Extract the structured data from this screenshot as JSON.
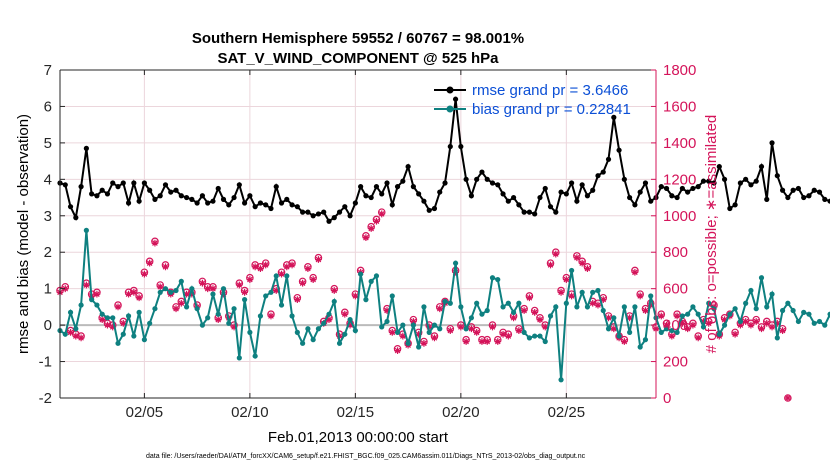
{
  "chart_data": {
    "type": "line",
    "title": "Southern Hemisphere 59552 / 60767 = 98.001%",
    "subtitle": "SAT_V_WIND_COMPONENT @ 525 hPa",
    "xlabel": "Feb.01,2013 00:00:00 start",
    "ylabel_left": "rmse and bias (model - observation)",
    "ylabel_right": "# of obs: o=possible; ∗=assimilated",
    "footer": "data file: /Users/raeder/DAI/ATM_forcXX/CAM6_setup/f.e21.FHIST_BGC.f09_025.CAM6assim.011/Diags_NTrS_2013-02/obs_diag_output.nc",
    "xlim": [
      1,
      29.25
    ],
    "ylim_left": [
      -2,
      7
    ],
    "ylim_right": [
      0,
      1800
    ],
    "xticks": [
      5,
      10,
      15,
      20,
      25
    ],
    "xtick_labels": [
      "02/05",
      "02/10",
      "02/15",
      "02/20",
      "02/25"
    ],
    "yticks_left": [
      -2,
      -1,
      0,
      1,
      2,
      3,
      4,
      5,
      6,
      7
    ],
    "yticks_right": [
      0,
      200,
      400,
      600,
      800,
      1000,
      1200,
      1400,
      1600,
      1800
    ],
    "grid": true,
    "legend_position": "top-right",
    "colors": {
      "rmse": "#000000",
      "bias": "#0e8080",
      "obs": "#d4145a",
      "legend_text": "#0b4fd6",
      "zero_line": "#bbbbbb",
      "grid": "#ecd6dc"
    },
    "x_start": 1.0,
    "x_step": 0.25,
    "series": [
      {
        "name": "rmse grand pr = 3.6466",
        "axis": "left",
        "values": [
          3.9,
          3.85,
          3.25,
          2.95,
          3.8,
          4.85,
          3.6,
          3.55,
          3.7,
          3.6,
          3.9,
          3.8,
          3.9,
          3.35,
          3.9,
          3.4,
          3.9,
          3.7,
          3.45,
          3.55,
          3.85,
          3.65,
          3.7,
          3.55,
          3.5,
          3.45,
          3.35,
          3.55,
          3.35,
          3.4,
          3.75,
          3.45,
          3.3,
          3.5,
          3.85,
          3.35,
          3.55,
          3.25,
          3.35,
          3.3,
          3.2,
          3.8,
          3.35,
          3.45,
          3.3,
          3.25,
          3.1,
          3.1,
          3.0,
          3.05,
          3.1,
          2.85,
          2.95,
          3.1,
          3.25,
          3.0,
          3.35,
          3.8,
          3.55,
          3.5,
          3.8,
          3.6,
          3.9,
          3.3,
          3.8,
          3.95,
          4.35,
          3.8,
          3.6,
          3.4,
          3.15,
          3.2,
          3.65,
          3.9,
          4.9,
          6.2,
          4.9,
          4.0,
          3.55,
          4.0,
          4.2,
          4.0,
          3.9,
          3.85,
          3.6,
          3.4,
          3.5,
          3.3,
          3.1,
          3.1,
          3.05,
          3.5,
          3.75,
          3.25,
          3.1,
          3.65,
          3.6,
          3.9,
          3.4,
          3.85,
          3.55,
          3.7,
          4.1,
          4.2,
          4.55,
          5.7,
          4.8,
          4.0,
          3.5,
          3.3,
          3.65,
          3.9,
          3.4,
          3.5,
          3.8,
          3.75,
          3.55,
          3.5,
          3.75,
          3.65,
          3.75,
          3.8,
          3.95,
          3.95,
          3.9,
          4.35,
          4.0,
          3.2,
          3.3,
          3.9,
          4.0,
          3.85,
          3.95,
          4.35,
          3.45,
          5.0,
          4.1,
          3.7,
          3.5,
          3.7,
          3.75,
          3.5,
          3.55,
          3.7,
          3.65,
          3.45,
          3.4,
          3.4,
          3.45,
          3.5,
          3.3,
          3.4,
          3.5,
          3.55,
          3.55,
          3.8,
          3.7,
          3.7,
          4.05,
          3.85,
          3.55,
          3.85,
          3.75,
          3.55,
          3.45,
          3.5,
          3.6,
          3.5,
          3.6,
          3.6,
          3.55,
          3.8,
          3.85,
          3.8,
          3.65,
          3.75,
          3.7,
          3.6,
          3.45,
          3.7,
          3.7,
          3.85,
          3.75,
          3.4,
          3.55,
          3.45,
          3.55,
          3.4,
          3.7,
          3.85,
          3.55,
          3.45,
          3.5,
          3.6,
          3.8,
          3.6,
          3.5,
          3.8,
          3.6,
          3.5,
          3.45,
          3.3,
          3.35,
          3.4,
          3.5
        ]
      },
      {
        "name": "bias grand pr = 0.22841",
        "axis": "left",
        "values": [
          -0.15,
          -0.25,
          0.35,
          -0.1,
          0.55,
          2.6,
          0.7,
          0.55,
          0.3,
          0.2,
          0.2,
          -0.5,
          -0.25,
          0.25,
          -0.3,
          0.35,
          -0.4,
          0.05,
          0.45,
          0.9,
          1.0,
          0.9,
          0.95,
          1.2,
          0.5,
          1.0,
          0.45,
          0.0,
          0.2,
          0.85,
          0.3,
          1.0,
          0.05,
          0.45,
          -0.9,
          0.7,
          -0.2,
          -0.85,
          0.25,
          0.8,
          0.9,
          1.35,
          0.55,
          1.35,
          0.25,
          -0.2,
          -0.5,
          -0.1,
          -0.4,
          -0.1,
          0.05,
          0.3,
          0.65,
          -0.5,
          -0.25,
          0.15,
          -0.15,
          1.4,
          0.7,
          1.2,
          1.35,
          -0.05,
          0.1,
          0.8,
          -0.2,
          0.0,
          -0.5,
          0.0,
          -0.6,
          0.5,
          -0.2,
          0.0,
          -0.1,
          0.65,
          0.6,
          1.7,
          0.5,
          -0.1,
          0.2,
          0.6,
          0.3,
          0.4,
          1.3,
          1.25,
          0.5,
          0.6,
          0.35,
          0.6,
          -0.2,
          -0.35,
          -0.3,
          -0.3,
          -0.45,
          0.25,
          0.5,
          -1.5,
          0.6,
          1.5,
          0.5,
          0.9,
          0.5,
          0.9,
          0.95,
          0.4,
          -0.1,
          0.2,
          -0.3,
          0.5,
          -0.2,
          0.5,
          -0.6,
          -0.4,
          0.8,
          0.2,
          -0.2,
          -0.1,
          -0.15,
          -0.2,
          0.25,
          0.3,
          0.5,
          0.3,
          -0.05,
          0.6,
          0.45,
          -0.25,
          0.0,
          0.3,
          0.45,
          0.1,
          0.6,
          0.95,
          0.45,
          1.3,
          0.5,
          0.85,
          -0.35,
          0.4,
          0.6,
          0.4,
          0.1,
          0.35,
          0.3,
          0.05,
          0.1,
          0.0,
          0.3,
          -0.2,
          -0.25,
          0.05,
          0.3,
          -0.05,
          0.05,
          -0.05,
          -0.25,
          0.4,
          0.15,
          0.1,
          0.5,
          0.45,
          0.0,
          0.2,
          0.55,
          0.3,
          -0.1,
          0.5,
          0.1,
          0.0,
          0.2,
          0.1,
          -0.35,
          0.2,
          0.3,
          0.25,
          0.05,
          0.0,
          0.1,
          -0.25,
          0.4,
          0.15,
          0.2,
          -0.15,
          0.0,
          -0.05,
          -0.1,
          0.1,
          -0.1,
          -0.3,
          0.1,
          0.0,
          -0.35,
          -0.4,
          0.0,
          0.05,
          -0.05,
          0.25,
          0.05,
          -0.1,
          -0.25,
          0.1,
          -0.5,
          -0.15,
          -0.2,
          -0.2,
          -0.25,
          -0.5,
          -0.35
        ]
      },
      {
        "name": "obs assimilated",
        "axis": "right",
        "values": [
          580,
          600,
          360,
          340,
          330,
          620,
          560,
          570,
          430,
          400,
          390,
          500,
          410,
          570,
          580,
          550,
          680,
          740,
          850,
          610,
          720,
          570,
          490,
          520,
          570,
          570,
          500,
          630,
          600,
          600,
          430,
          570,
          440,
          390,
          620,
          580,
          650,
          720,
          710,
          730,
          450,
          590,
          680,
          720,
          730,
          540,
          630,
          710,
          650,
          760,
          410,
          430,
          590,
          340,
          460,
          400,
          560,
          690,
          880,
          930,
          970,
          1010,
          480,
          360,
          260,
          340,
          290,
          420,
          350,
          300,
          390,
          330,
          490,
          520,
          370,
          690,
          390,
          310,
          380,
          360,
          310,
          310,
          390,
          310,
          350,
          340,
          440,
          370,
          480,
          550,
          470,
          430,
          390,
          730,
          790,
          580,
          650,
          560,
          770,
          740,
          710,
          520,
          510,
          540,
          440,
          380,
          330,
          310,
          440,
          690,
          560,
          480,
          510,
          380,
          450,
          400,
          340,
          450,
          410,
          380,
          400,
          330,
          420,
          410,
          500,
          340,
          430,
          450,
          350,
          400,
          420,
          400,
          420,
          380,
          410,
          390,
          410,
          370,
          0
        ]
      },
      {
        "name": "obs possible",
        "axis": "right",
        "values": [
          590,
          610,
          370,
          350,
          340,
          630,
          570,
          580,
          440,
          410,
          400,
          510,
          420,
          580,
          590,
          560,
          690,
          750,
          860,
          620,
          730,
          580,
          500,
          530,
          580,
          580,
          510,
          640,
          610,
          610,
          440,
          580,
          450,
          400,
          630,
          590,
          660,
          730,
          720,
          740,
          460,
          600,
          690,
          730,
          740,
          550,
          640,
          720,
          660,
          770,
          420,
          440,
          600,
          350,
          470,
          410,
          570,
          700,
          890,
          940,
          980,
          1020,
          490,
          370,
          270,
          350,
          300,
          430,
          360,
          310,
          400,
          340,
          500,
          530,
          380,
          700,
          400,
          320,
          390,
          370,
          320,
          320,
          400,
          320,
          360,
          350,
          450,
          380,
          490,
          560,
          480,
          440,
          400,
          740,
          800,
          590,
          660,
          570,
          780,
          750,
          720,
          530,
          520,
          550,
          450,
          390,
          340,
          320,
          450,
          700,
          570,
          490,
          520,
          390,
          460,
          410,
          350,
          460,
          420,
          390,
          410,
          340,
          430,
          420,
          510,
          350,
          440,
          460,
          360,
          410,
          430,
          410,
          430,
          390,
          420,
          400,
          420,
          380,
          0
        ]
      }
    ]
  }
}
